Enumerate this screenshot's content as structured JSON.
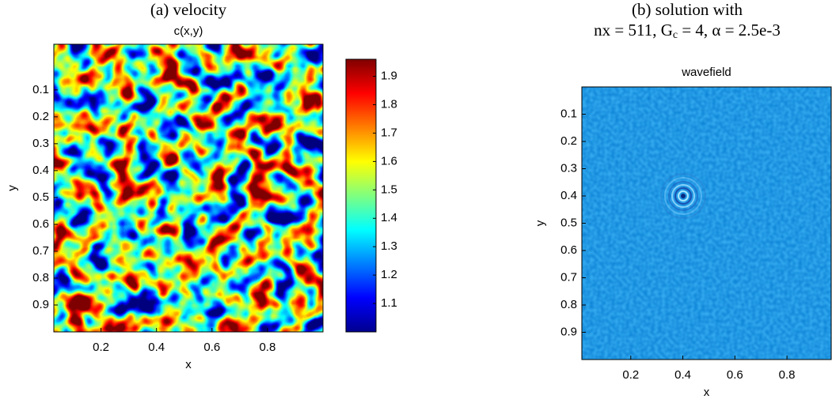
{
  "chart_data": [
    {
      "type": "heatmap",
      "title": "(a) velocity",
      "subtitle": "c(x,y)",
      "xlabel": "x",
      "ylabel": "y",
      "xlim": [
        0.03,
        1
      ],
      "ylim": [
        1,
        -0.07
      ],
      "xticks": [
        0.2,
        0.4,
        0.6,
        0.8
      ],
      "yticks": [
        0.1,
        0.2,
        0.3,
        0.4,
        0.5,
        0.6,
        0.7,
        0.8,
        0.9
      ],
      "colorbar": {
        "clim": [
          1.0,
          1.96
        ],
        "ticks": [
          1.1,
          1.2,
          1.3,
          1.4,
          1.5,
          1.6,
          1.7,
          1.8,
          1.9
        ]
      }
    },
    {
      "type": "heatmap",
      "title": "(b) solution with",
      "title_math": [
        "nx = 511, G",
        "c",
        " = 4, α = 2.5e-3"
      ],
      "subtitle": "wavefield",
      "xlabel": "x",
      "ylabel": "y",
      "xlim": [
        0.012,
        0.97
      ],
      "ylim": [
        1,
        0
      ],
      "xticks": [
        0.2,
        0.4,
        0.6,
        0.8
      ],
      "yticks": [
        0.1,
        0.2,
        0.3,
        0.4,
        0.5,
        0.6,
        0.7,
        0.8,
        0.9
      ]
    }
  ]
}
